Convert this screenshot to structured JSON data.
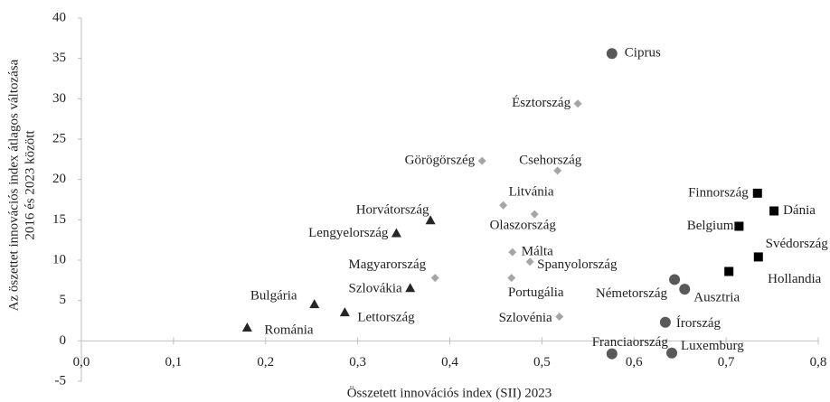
{
  "chart_data": {
    "type": "scatter",
    "x_label": "Összetett innovációs index (SII) 2023",
    "y_label": [
      "Az öszettet innovációs index átlagos változása",
      "2016 és 2023 között"
    ],
    "xlim": [
      0,
      0.8
    ],
    "ylim": [
      -5,
      40
    ],
    "xticks": [
      {
        "value": 0,
        "label": "0,0"
      },
      {
        "value": 0.1,
        "label": "0,1"
      },
      {
        "value": 0.2,
        "label": "0,2"
      },
      {
        "value": 0.3,
        "label": "0,3"
      },
      {
        "value": 0.4,
        "label": "0,4"
      },
      {
        "value": 0.5,
        "label": "0,5"
      },
      {
        "value": 0.6,
        "label": "0,6"
      },
      {
        "value": 0.7,
        "label": "0,7"
      },
      {
        "value": 0.8,
        "label": "0,8"
      }
    ],
    "yticks": [
      -5,
      0,
      5,
      10,
      15,
      20,
      25,
      30,
      35,
      40
    ],
    "grid": false,
    "series": [
      {
        "marker": "square",
        "color": "#000000",
        "labels": [
          "Finnország",
          "Dánia",
          "Belgium",
          "Svédország",
          "Hollandia"
        ],
        "x": [
          0.734,
          0.752,
          0.714,
          0.735,
          0.703
        ],
        "values": [
          18.3,
          16.1,
          14.2,
          10.4,
          8.6
        ]
      },
      {
        "marker": "circle",
        "color": "#595959",
        "labels": [
          "Ciprus",
          "Németország",
          "Ausztria",
          "Írország",
          "Franciaország",
          "Luxemburg"
        ],
        "x": [
          0.576,
          0.644,
          0.655,
          0.634,
          0.576,
          0.641
        ],
        "values": [
          35.6,
          7.6,
          6.4,
          2.3,
          -1.6,
          -1.5
        ]
      },
      {
        "marker": "diamond",
        "color": "#a6a6a6",
        "labels": [
          "Észtország",
          "Görögörszég",
          "Csehország",
          "Litvánia",
          "Olaszország",
          "Málta",
          "Spanyolország",
          "Magyarország",
          "Portugália",
          "Szlovénia"
        ],
        "x": [
          0.539,
          0.435,
          0.517,
          0.458,
          0.492,
          0.468,
          0.487,
          0.384,
          0.467,
          0.519
        ],
        "values": [
          29.4,
          22.3,
          21.1,
          16.8,
          15.7,
          11.0,
          9.8,
          7.8,
          7.8,
          3.0
        ]
      },
      {
        "marker": "triangle",
        "color": "#262626",
        "labels": [
          "Horvátország",
          "Lengyelország",
          "Szlovákia",
          "Bulgária",
          "Lettország",
          "Románia"
        ],
        "x": [
          0.379,
          0.342,
          0.357,
          0.253,
          0.286,
          0.18
        ],
        "values": [
          14.9,
          13.3,
          6.5,
          4.5,
          3.5,
          1.6
        ]
      }
    ]
  }
}
